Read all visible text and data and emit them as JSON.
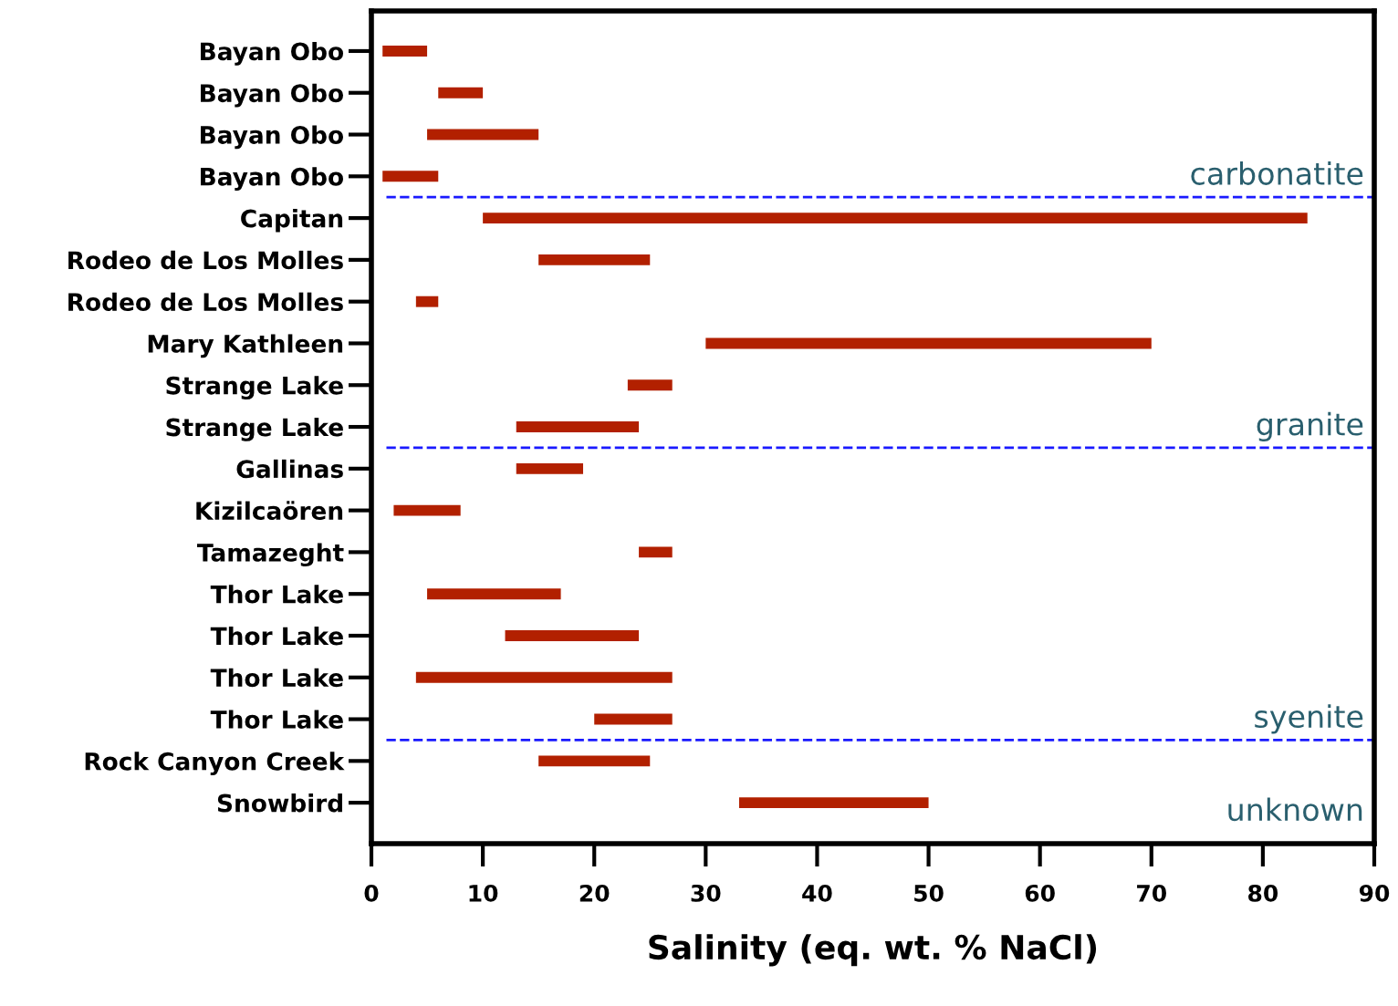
{
  "chart_data": {
    "type": "bar",
    "orientation": "horizontal",
    "xlabel": "Salinity (eq. wt. % NaCl)",
    "categories": [
      "Bayan Obo",
      "Bayan Obo",
      "Bayan Obo",
      "Bayan Obo",
      "Capitan",
      "Rodeo de Los Molles",
      "Rodeo de Los Molles",
      "Mary Kathleen",
      "Strange Lake",
      "Strange Lake",
      "Gallinas",
      "Kizilcaören",
      "Tamazeght",
      "Thor Lake",
      "Thor Lake",
      "Thor Lake",
      "Thor Lake",
      "Rock Canyon Creek",
      "Snowbird"
    ],
    "base": [
      1,
      6,
      5,
      1,
      10,
      15,
      4,
      30,
      23,
      13,
      13,
      2,
      24,
      5,
      12,
      4,
      20,
      15,
      33
    ],
    "values": [
      4,
      4,
      10,
      5,
      74,
      10,
      2,
      40,
      4,
      11,
      6,
      6,
      3,
      12,
      12,
      23,
      7,
      10,
      17
    ],
    "color": "#b22000",
    "xlim": [
      0,
      90
    ],
    "xticks": [
      0,
      10,
      20,
      30,
      40,
      50,
      60,
      70,
      80,
      90
    ],
    "grid": false,
    "annotations": [
      "carbonatite",
      "granite",
      "syenite",
      "unknown"
    ]
  }
}
